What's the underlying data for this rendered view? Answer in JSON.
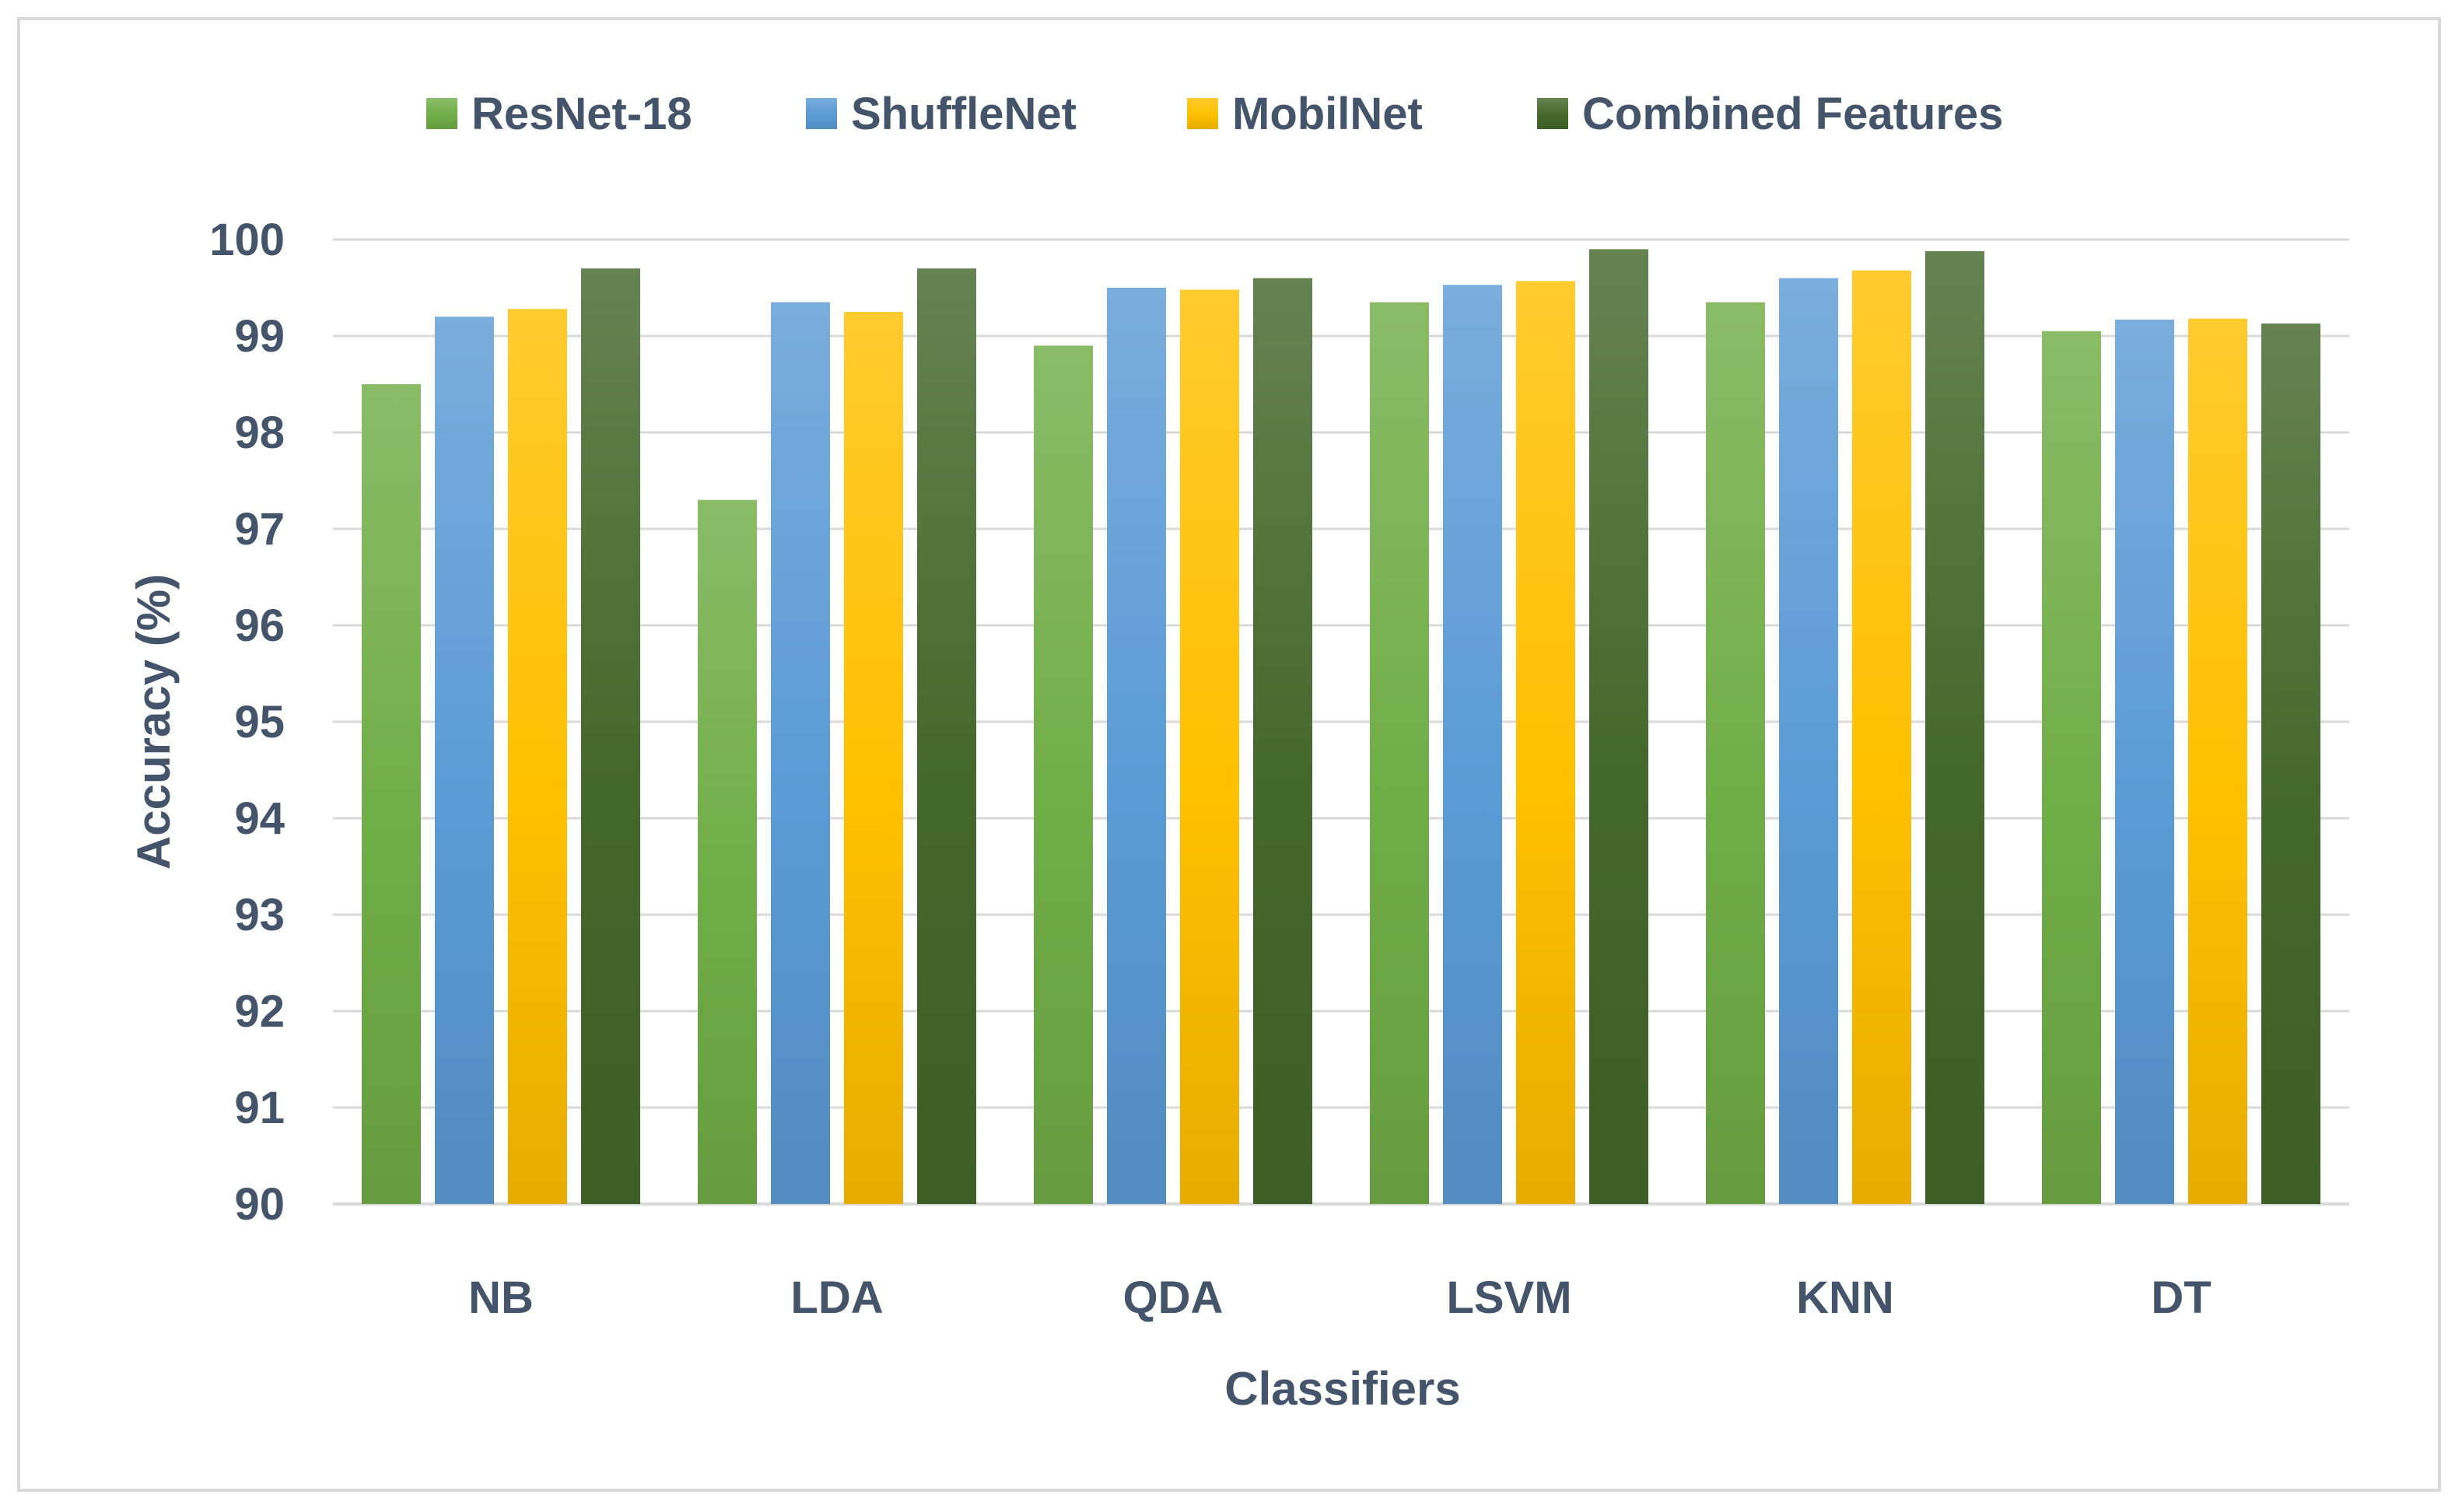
{
  "chart_data": {
    "type": "bar",
    "title": "",
    "xlabel": "Classifiers",
    "ylabel": "Accuracy (%)",
    "ylim": [
      90,
      100
    ],
    "yticks": [
      "90",
      "91",
      "92",
      "93",
      "94",
      "95",
      "96",
      "97",
      "98",
      "99",
      "100"
    ],
    "categories": [
      "NB",
      "LDA",
      "QDA",
      "LSVM",
      "KNN",
      "DT"
    ],
    "grid": true,
    "legend_position": "top",
    "series": [
      {
        "name": "ResNet-18",
        "color": "#70ad47",
        "values": [
          98.5,
          97.3,
          98.9,
          99.35,
          99.35,
          99.05
        ]
      },
      {
        "name": "ShuffleNet",
        "color": "#5b9bd5",
        "values": [
          99.2,
          99.35,
          99.5,
          99.53,
          99.6,
          99.17
        ]
      },
      {
        "name": "MobilNet",
        "color": "#ffc000",
        "values": [
          99.28,
          99.25,
          99.48,
          99.57,
          99.68,
          99.18
        ]
      },
      {
        "name": "Combined Features",
        "color": "#43682b",
        "values": [
          99.7,
          99.7,
          99.6,
          99.9,
          99.88,
          99.13
        ]
      }
    ]
  }
}
